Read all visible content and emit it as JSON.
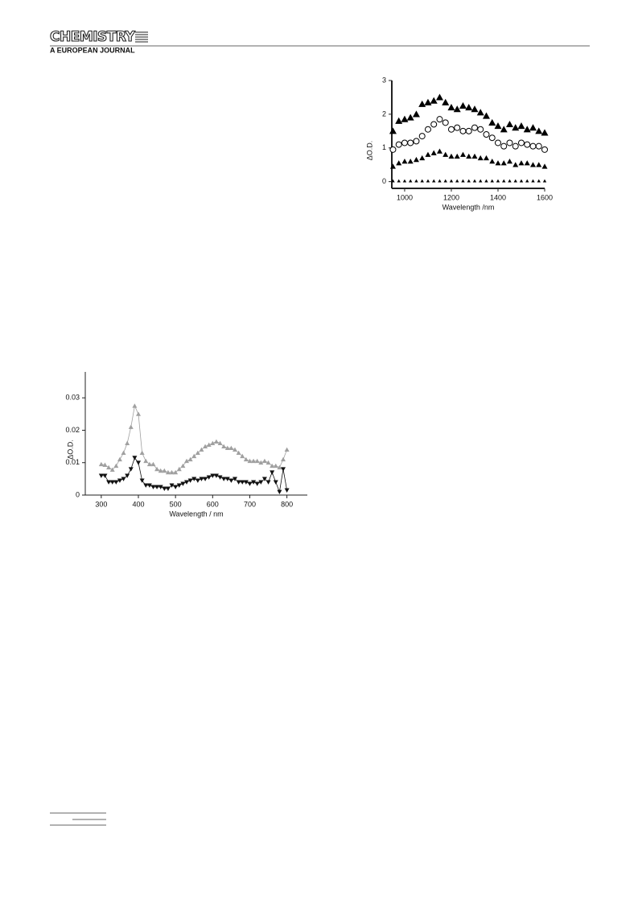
{
  "header": {
    "logo": "CHEMISTRY",
    "subtitle": "A EUROPEAN JOURNAL"
  },
  "chart_data": [
    {
      "type": "scatter",
      "xlabel": "Wavelength /nm",
      "ylabel": "ΔO.D.",
      "x": [
        950,
        975,
        1000,
        1025,
        1050,
        1075,
        1100,
        1125,
        1150,
        1175,
        1200,
        1225,
        1250,
        1275,
        1300,
        1325,
        1350,
        1375,
        1400,
        1425,
        1450,
        1475,
        1500,
        1525,
        1550,
        1575,
        1600
      ],
      "xlim": [
        945,
        1600
      ],
      "xticks": [
        1000,
        1200,
        1400,
        1600
      ],
      "ylim": [
        -0.2,
        3
      ],
      "yticks": [
        0,
        1,
        2,
        3
      ],
      "series": [
        {
          "marker": "triangle",
          "color": "#000000",
          "values": [
            1.5,
            1.8,
            1.85,
            1.9,
            2.0,
            2.3,
            2.35,
            2.4,
            2.5,
            2.35,
            2.2,
            2.15,
            2.25,
            2.2,
            2.15,
            2.05,
            1.95,
            1.75,
            1.65,
            1.55,
            1.7,
            1.6,
            1.65,
            1.55,
            1.6,
            1.5,
            1.45
          ]
        },
        {
          "marker": "circle",
          "color": "#000000",
          "values": [
            0.95,
            1.1,
            1.15,
            1.15,
            1.2,
            1.35,
            1.55,
            1.7,
            1.85,
            1.75,
            1.55,
            1.6,
            1.5,
            1.5,
            1.6,
            1.55,
            1.4,
            1.3,
            1.15,
            1.05,
            1.15,
            1.05,
            1.15,
            1.1,
            1.05,
            1.05,
            0.95
          ]
        },
        {
          "marker": "triangle",
          "color": "#000000",
          "values": [
            0.45,
            0.55,
            0.6,
            0.6,
            0.65,
            0.7,
            0.8,
            0.85,
            0.9,
            0.8,
            0.75,
            0.75,
            0.8,
            0.75,
            0.75,
            0.7,
            0.7,
            0.6,
            0.55,
            0.55,
            0.6,
            0.5,
            0.55,
            0.55,
            0.5,
            0.5,
            0.45
          ]
        },
        {
          "marker": "triangle",
          "color": "#000000",
          "values": [
            0.02,
            0.02,
            0.02,
            0.02,
            0.02,
            0.02,
            0.02,
            0.02,
            0.02,
            0.02,
            0.02,
            0.02,
            0.02,
            0.02,
            0.02,
            0.02,
            0.02,
            0.02,
            0.02,
            0.02,
            0.02,
            0.02,
            0.02,
            0.02,
            0.02,
            0.02,
            0.02
          ]
        }
      ]
    },
    {
      "type": "line",
      "xlabel": "Wavelength / nm",
      "ylabel": "ΔO.D.",
      "x": [
        300,
        310,
        320,
        330,
        340,
        350,
        360,
        370,
        380,
        390,
        400,
        410,
        420,
        430,
        440,
        450,
        460,
        470,
        480,
        490,
        500,
        510,
        520,
        530,
        540,
        550,
        560,
        570,
        580,
        590,
        600,
        610,
        620,
        630,
        640,
        650,
        660,
        670,
        680,
        690,
        700,
        710,
        720,
        730,
        740,
        750,
        760,
        770,
        780,
        790,
        800
      ],
      "xlim": [
        257,
        855
      ],
      "xticks": [
        300,
        400,
        500,
        600,
        700,
        800
      ],
      "ylim": [
        0,
        0.038
      ],
      "yticks": [
        0,
        0.01,
        0.02,
        0.03
      ],
      "series": [
        {
          "marker": "triangle",
          "color": "#a0a0a0",
          "values": [
            0.0095,
            0.0093,
            0.0085,
            0.0078,
            0.009,
            0.011,
            0.013,
            0.016,
            0.021,
            0.0275,
            0.025,
            0.013,
            0.0105,
            0.0095,
            0.0095,
            0.008,
            0.0075,
            0.0075,
            0.007,
            0.007,
            0.007,
            0.008,
            0.009,
            0.0105,
            0.011,
            0.012,
            0.013,
            0.014,
            0.015,
            0.0155,
            0.016,
            0.0165,
            0.016,
            0.015,
            0.0145,
            0.0145,
            0.014,
            0.013,
            0.012,
            0.011,
            0.0105,
            0.0105,
            0.0105,
            0.01,
            0.0105,
            0.01,
            0.009,
            0.009,
            0.0085,
            0.011,
            0.014
          ]
        },
        {
          "marker": "triangle-down",
          "color": "#111111",
          "values": [
            0.006,
            0.006,
            0.004,
            0.004,
            0.004,
            0.0045,
            0.005,
            0.006,
            0.008,
            0.0115,
            0.01,
            0.0045,
            0.003,
            0.003,
            0.0025,
            0.0025,
            0.0025,
            0.002,
            0.002,
            0.003,
            0.0025,
            0.003,
            0.0035,
            0.004,
            0.0045,
            0.005,
            0.0045,
            0.005,
            0.005,
            0.0055,
            0.006,
            0.006,
            0.0055,
            0.005,
            0.005,
            0.0045,
            0.005,
            0.004,
            0.004,
            0.004,
            0.0035,
            0.004,
            0.0035,
            0.004,
            0.005,
            0.004,
            0.007,
            0.004,
            0.001,
            0.008,
            0.0015
          ]
        }
      ]
    }
  ]
}
